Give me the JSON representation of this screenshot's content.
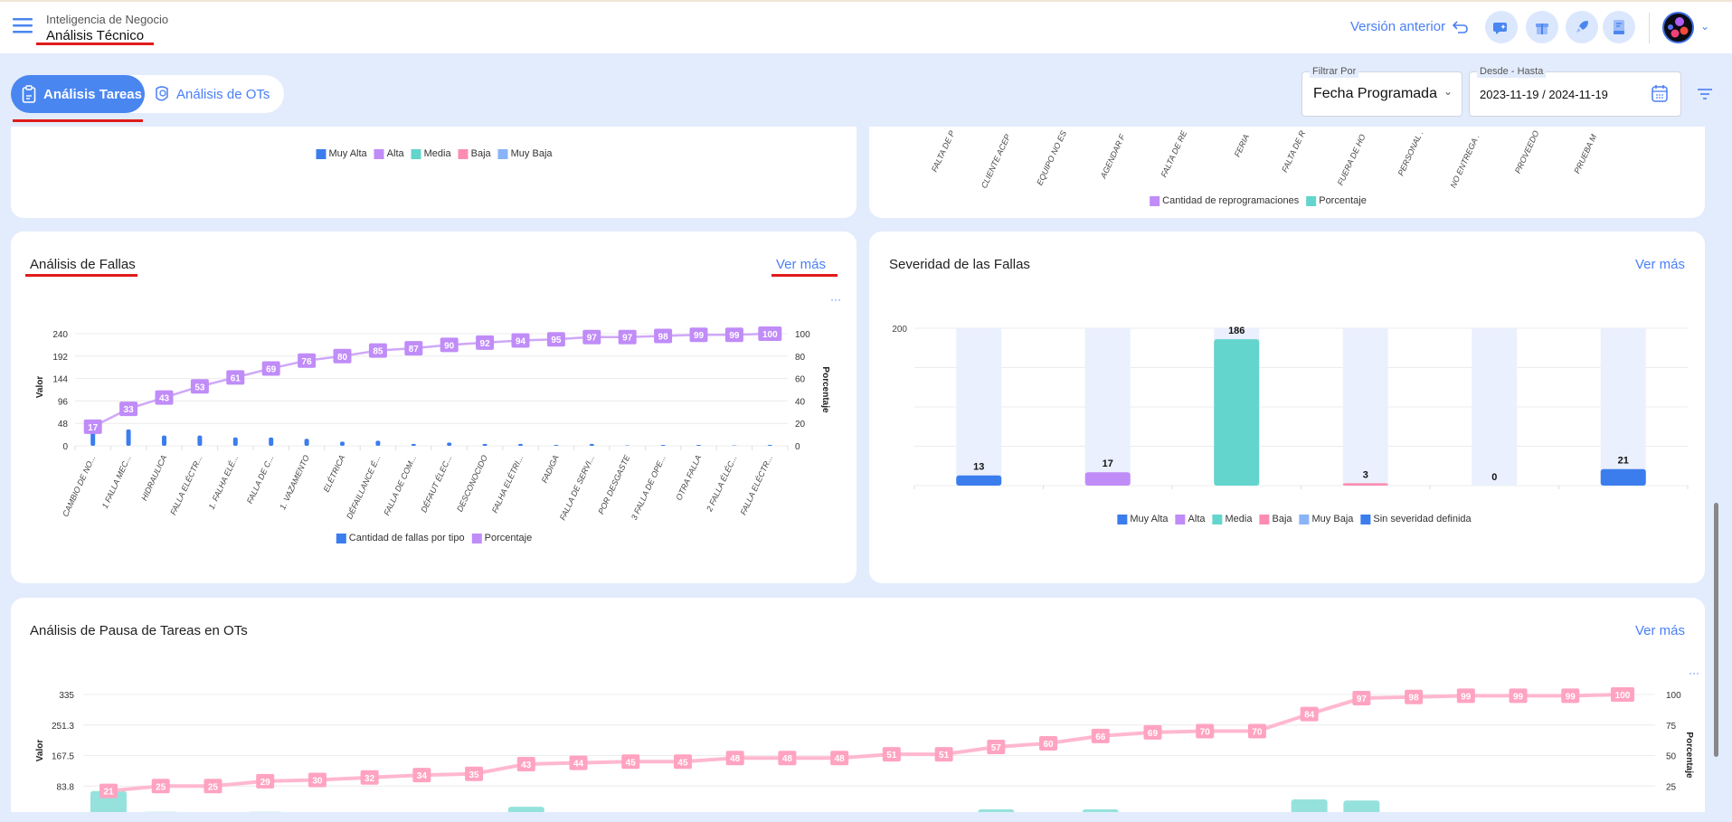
{
  "header": {
    "section": "Inteligencia de Negocio",
    "title": "Análisis Técnico",
    "previous_version": "Versión anterior",
    "icons": [
      "chat-sparkle-icon",
      "gift-box-icon",
      "rocket-icon",
      "book-icon"
    ]
  },
  "tabs": [
    {
      "label": "Análisis Tareas",
      "active": true
    },
    {
      "label": "Análisis de OTs",
      "active": false
    }
  ],
  "filters": {
    "filter_by_label": "Filtrar Por",
    "filter_by_value": "Fecha Programada",
    "range_label": "Desde - Hasta",
    "range_value": "2023-11-19 / 2024-11-19"
  },
  "colors": {
    "blue": "#3b7ded",
    "purple": "#c08cf8",
    "teal": "#63d5cc",
    "pink": "#fd8db0",
    "lightblue": "#8ab4f8",
    "accent": "#4a86f0"
  },
  "top_left_card": {
    "legend": [
      "Muy Alta",
      "Alta",
      "Media",
      "Baja",
      "Muy Baja"
    ]
  },
  "top_right_card": {
    "xlabels": [
      "FALTA DE P",
      "CLIENTE ACEP",
      "EQUIPO NO ES",
      "AGENDAR F",
      "FALTA DE RE",
      "FERIA",
      "FALTA DE R",
      "FUERA DE HO",
      "PERSONAL .",
      "NO ENTREGA .",
      "PROVEEDO",
      "PRUEBA M"
    ],
    "legend": [
      "Cantidad de reprogramaciones",
      "Porcentaje"
    ]
  },
  "chart_data": [
    {
      "title": "Análisis de Fallas",
      "link": "Ver más",
      "more": "···",
      "type": "bar+line",
      "categories": [
        "CAMBIO DE NO...",
        "1 FALLA MEC...",
        "HIDRAULICA",
        "FALLA ELÉCTR...",
        "1. FALHA ELÉ...",
        "FALLA DE C...",
        "1. VAZAMENTO",
        "ELÉTRICA",
        "DÉFAILLANCE É...",
        "FALLA DE COM...",
        "DÉFAUT ÉLEC...",
        "DESCONOCIDO",
        "FALHA ELÉTRI...",
        "FADIGA",
        "FALLA DE SERVI...",
        "POR DESGASTE",
        "3 FALLA DE OPE...",
        "OTRA FALLA",
        "2 FALLA ÉLÉC...",
        "FALLA ELÉCTR..."
      ],
      "series": [
        {
          "name": "Cantidad de fallas por tipo",
          "values": [
            37,
            35,
            22,
            22,
            18,
            18,
            15,
            9,
            11,
            4,
            7,
            4,
            4,
            2,
            4,
            1,
            2,
            2,
            1,
            2
          ]
        },
        {
          "name": "Porcentaje",
          "values": [
            17,
            33,
            43,
            53,
            61,
            69,
            76,
            80,
            85,
            87,
            90,
            92,
            94,
            95,
            97,
            97,
            98,
            99,
            99,
            100
          ]
        }
      ],
      "ylabel": "Valor",
      "y2label": "Porcentaje",
      "yticks": [
        "0",
        "48",
        "96",
        "144",
        "192",
        "240"
      ],
      "y2ticks": [
        "0",
        "20",
        "40",
        "60",
        "80",
        "100"
      ],
      "ylim": [
        0,
        240
      ],
      "y2lim": [
        0,
        100
      ]
    },
    {
      "title": "Severidad de las Fallas",
      "link": "Ver más",
      "type": "bar",
      "categories": [
        "Muy Alta",
        "Alta",
        "Media",
        "Baja",
        "Muy Baja",
        "Sin severidad definida"
      ],
      "values": [
        13,
        17,
        186,
        3,
        0,
        21
      ],
      "ytick": "200",
      "ylim": [
        0,
        200
      ]
    },
    {
      "title": "Análisis de Pausa de Tareas en OTs",
      "link": "Ver más",
      "more": "···",
      "type": "bar+line",
      "series": [
        {
          "name": "Valor",
          "values": [
            70,
            13,
            1,
            13,
            3,
            7,
            7,
            3,
            27,
            3,
            3,
            1,
            10,
            1,
            1,
            10,
            1,
            20,
            10,
            20,
            10,
            3,
            1,
            47,
            44,
            3,
            3,
            1,
            1,
            3
          ]
        },
        {
          "name": "Porcentaje",
          "values": [
            21,
            25,
            25,
            29,
            30,
            32,
            34,
            35,
            43,
            44,
            45,
            45,
            48,
            48,
            48,
            51,
            51,
            57,
            60,
            66,
            69,
            70,
            70,
            84,
            97,
            98,
            99,
            99,
            99,
            100
          ]
        }
      ],
      "ylabel": "Valor",
      "y2label": "Porcentaje",
      "yticks": [
        "83.8",
        "167.5",
        "251.3",
        "335"
      ],
      "y2ticks": [
        "25",
        "50",
        "75",
        "100"
      ],
      "ylim": [
        0,
        335
      ],
      "y2lim": [
        0,
        100
      ]
    }
  ]
}
